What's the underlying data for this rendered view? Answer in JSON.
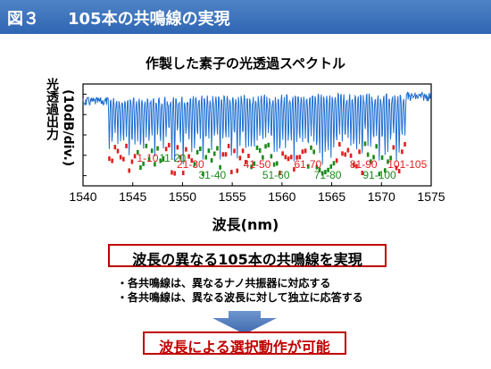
{
  "header": {
    "figure": "図３",
    "title": "105本の共鳴線の実現",
    "bg_color": "#3a70bb"
  },
  "chart_data": {
    "type": "line",
    "title": "作製した素子の光透過スペクトル",
    "xlabel": "波長(nm)",
    "ylabel_line1": "光透過出力",
    "ylabel_line2": "(10dB/div.)",
    "xlim": [
      1540,
      1575
    ],
    "xticks": [
      "1540",
      "1545",
      "1550",
      "1555",
      "1560",
      "1565",
      "1570",
      "1575"
    ],
    "line_color": "#1f6fd1",
    "resonance_range": [
      1542.5,
      1572.5
    ],
    "resonance_count": 105,
    "groups": [
      {
        "label": "1-10",
        "color": "#e02020",
        "row": "upper",
        "x": 1546.5
      },
      {
        "label": "11-20",
        "color": "#1a8a1a",
        "row": "upper",
        "x": 1549.0
      },
      {
        "label": "21-30",
        "color": "#e02020",
        "row": "middle",
        "x": 1550.8
      },
      {
        "label": "31-40",
        "color": "#1a8a1a",
        "row": "lower",
        "x": 1553.0
      },
      {
        "label": "41-50",
        "color": "#e02020",
        "row": "middle",
        "x": 1557.5
      },
      {
        "label": "51-60",
        "color": "#1a8a1a",
        "row": "lower",
        "x": 1559.4
      },
      {
        "label": "61-70",
        "color": "#e02020",
        "row": "middle",
        "x": 1562.6
      },
      {
        "label": "71-80",
        "color": "#1a8a1a",
        "row": "lower",
        "x": 1564.6
      },
      {
        "label": "81-90",
        "color": "#e02020",
        "row": "middle",
        "x": 1568.2
      },
      {
        "label": "91-100",
        "color": "#1a8a1a",
        "row": "lower",
        "x": 1569.8
      },
      {
        "label": "101-105",
        "color": "#e02020",
        "row": "middle",
        "x": 1572.6
      }
    ]
  },
  "highlight": {
    "text": "波長の異なる105本の共鳴線を実現"
  },
  "bullets": [
    "・各共鳴線は、異なるナノ共振器に対応する",
    "・各共鳴線は、異なる波長に対して独立に応答する"
  ],
  "result": {
    "text": "波長による選択動作が可能"
  }
}
